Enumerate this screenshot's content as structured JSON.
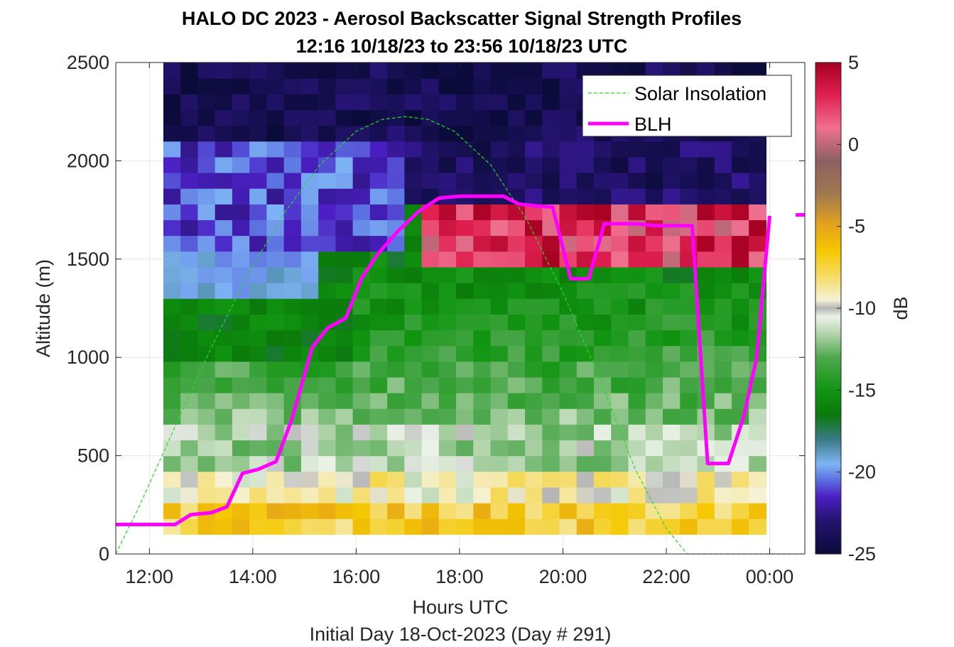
{
  "chart_data": {
    "type": "heatmap",
    "title": "HALO DC 2023 - Aerosol Backscatter Signal Strength Profiles",
    "subtitle": "12:16 10/18/23 to 23:56 10/18/23  UTC",
    "xlabel": "Hours UTC",
    "xlabel2": "Initial Day 18-Oct-2023 (Day # 291)",
    "ylabel": "Altitude (m)",
    "colorbar_label": "dB",
    "xlim": [
      11.35,
      24.68
    ],
    "ylim": [
      0,
      2500
    ],
    "clim": [
      -25,
      5
    ],
    "x_ticks": [
      12,
      14,
      16,
      18,
      20,
      22,
      24
    ],
    "x_tick_labels": [
      "12:00",
      "14:00",
      "16:00",
      "18:00",
      "20:00",
      "22:00",
      "00:00"
    ],
    "y_ticks": [
      0,
      500,
      1000,
      1500,
      2000,
      2500
    ],
    "y_tick_labels": [
      "0",
      "500",
      "1000",
      "1500",
      "2000",
      "2500"
    ],
    "colorbar_ticks": [
      5,
      0,
      -5,
      -10,
      -15,
      -20,
      -25
    ],
    "colorbar_tick_labels": [
      "5",
      "0",
      "-5",
      "-10",
      "-15",
      "-20",
      "-25"
    ],
    "colormap": [
      {
        "v": -25,
        "c": "#0b0b3a"
      },
      {
        "v": -23,
        "c": "#24136e"
      },
      {
        "v": -21.5,
        "c": "#4b1fc4"
      },
      {
        "v": -20.5,
        "c": "#5b6ee0"
      },
      {
        "v": -19.5,
        "c": "#7eb4f4"
      },
      {
        "v": -18,
        "c": "#3a7a86"
      },
      {
        "v": -16.5,
        "c": "#0a7a0a"
      },
      {
        "v": -15,
        "c": "#119511"
      },
      {
        "v": -13,
        "c": "#4ea84e"
      },
      {
        "v": -11.5,
        "c": "#b7d6b0"
      },
      {
        "v": -10.5,
        "c": "#ebf2e8"
      },
      {
        "v": -10,
        "c": "#b4b4b4"
      },
      {
        "v": -9.5,
        "c": "#f5f2d5"
      },
      {
        "v": -8,
        "c": "#f5da60"
      },
      {
        "v": -6.5,
        "c": "#f5c800"
      },
      {
        "v": -5,
        "c": "#e6a51a"
      },
      {
        "v": -3,
        "c": "#a07850"
      },
      {
        "v": -1,
        "c": "#8c6060"
      },
      {
        "v": 1,
        "c": "#f07090"
      },
      {
        "v": 3,
        "c": "#e02050"
      },
      {
        "v": 5,
        "c": "#a50021"
      }
    ],
    "heatmap": {
      "x_start": 12.27,
      "x_end": 23.93,
      "n_columns": 35,
      "y_start": 100,
      "y_end": 2500,
      "n_rows": 30
    },
    "series": [
      {
        "name": "Solar Insolation",
        "style": "dashed",
        "color": "#22dd22",
        "x": [
          11.35,
          11.8,
          12.5,
          13.2,
          13.9,
          14.6,
          15.3,
          16.0,
          16.5,
          16.95,
          17.4,
          17.9,
          18.6,
          19.3,
          20.0,
          20.7,
          21.4,
          22.0,
          22.4,
          24.68
        ],
        "y": [
          0,
          240,
          650,
          1050,
          1420,
          1730,
          1980,
          2150,
          2210,
          2225,
          2210,
          2150,
          1980,
          1700,
          1330,
          900,
          430,
          130,
          0,
          0
        ]
      },
      {
        "name": "BLH",
        "style": "solid",
        "color": "#ff00ff",
        "x": [
          11.35,
          12.5,
          12.8,
          13.2,
          13.5,
          13.8,
          14.1,
          14.45,
          14.75,
          15.15,
          15.45,
          15.8,
          16.1,
          16.4,
          16.8,
          17.2,
          17.6,
          18.0,
          18.4,
          18.85,
          19.15,
          19.5,
          19.8,
          20.15,
          20.5,
          20.8,
          21.4,
          21.8,
          22.2,
          22.5,
          22.8,
          23.2,
          23.5,
          23.75,
          24.0
        ],
        "y": [
          150,
          150,
          200,
          210,
          240,
          410,
          430,
          470,
          680,
          1050,
          1150,
          1200,
          1400,
          1520,
          1640,
          1740,
          1810,
          1820,
          1820,
          1820,
          1780,
          1770,
          1765,
          1400,
          1400,
          1680,
          1680,
          1670,
          1670,
          1670,
          460,
          460,
          700,
          1000,
          1720
        ]
      }
    ],
    "blh_extension": {
      "x": [
        24.5,
        24.68
      ],
      "y": [
        1725,
        1725
      ]
    },
    "legend": {
      "placement": "top-right",
      "entries": [
        "Solar Insolation",
        "BLH"
      ]
    }
  }
}
